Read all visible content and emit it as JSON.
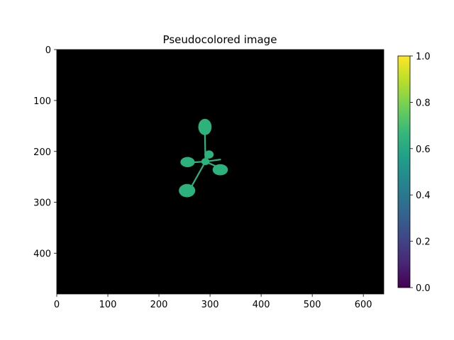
{
  "chart_data": [
    {
      "type": "heatmap",
      "title": "Pseudocolored image",
      "xlabel": "",
      "ylabel": "",
      "image_width": 640,
      "image_height": 480,
      "xlim": [
        0,
        640
      ],
      "ylim": [
        480,
        0
      ],
      "xticks": [
        0,
        100,
        200,
        300,
        400,
        500,
        600
      ],
      "yticks": [
        0,
        100,
        200,
        300,
        400
      ],
      "background_value": 0.0,
      "background_color": "#000000",
      "plant_value": 0.62,
      "plant_color": "#2db27d",
      "plant_regions": [
        {
          "part": "top-leaf",
          "cx": 290,
          "cy": 152,
          "rx": 13,
          "ry": 16
        },
        {
          "part": "upper-right-leaf",
          "cx": 298,
          "cy": 206,
          "rx": 9,
          "ry": 8
        },
        {
          "part": "right-leaf",
          "cx": 320,
          "cy": 236,
          "rx": 15,
          "ry": 11
        },
        {
          "part": "left-leaf",
          "cx": 256,
          "cy": 221,
          "rx": 14,
          "ry": 10
        },
        {
          "part": "bottom-leaf",
          "cx": 255,
          "cy": 277,
          "rx": 16,
          "ry": 13
        },
        {
          "part": "center",
          "cx": 291,
          "cy": 220,
          "rx": 8,
          "ry": 7
        }
      ],
      "plant_stems": [
        {
          "x1": 290,
          "y1": 165,
          "x2": 291,
          "y2": 220
        },
        {
          "x1": 291,
          "y1": 220,
          "x2": 256,
          "y2": 222
        },
        {
          "x1": 291,
          "y1": 220,
          "x2": 318,
          "y2": 232
        },
        {
          "x1": 291,
          "y1": 220,
          "x2": 320,
          "y2": 216
        },
        {
          "x1": 291,
          "y1": 220,
          "x2": 262,
          "y2": 272
        },
        {
          "x1": 291,
          "y1": 220,
          "x2": 298,
          "y2": 206
        }
      ],
      "colorbar": {
        "colormap": "viridis",
        "range": [
          0.0,
          1.0
        ],
        "ticks": [
          0.0,
          0.2,
          0.4,
          0.6,
          0.8,
          1.0
        ],
        "tick_labels": [
          "0.0",
          "0.2",
          "0.4",
          "0.6",
          "0.8",
          "1.0"
        ],
        "stops": [
          "#440154",
          "#482878",
          "#3e4989",
          "#31688e",
          "#26828e",
          "#1f9e89",
          "#35b779",
          "#6ece58",
          "#b5de2b",
          "#fde725"
        ]
      }
    }
  ]
}
